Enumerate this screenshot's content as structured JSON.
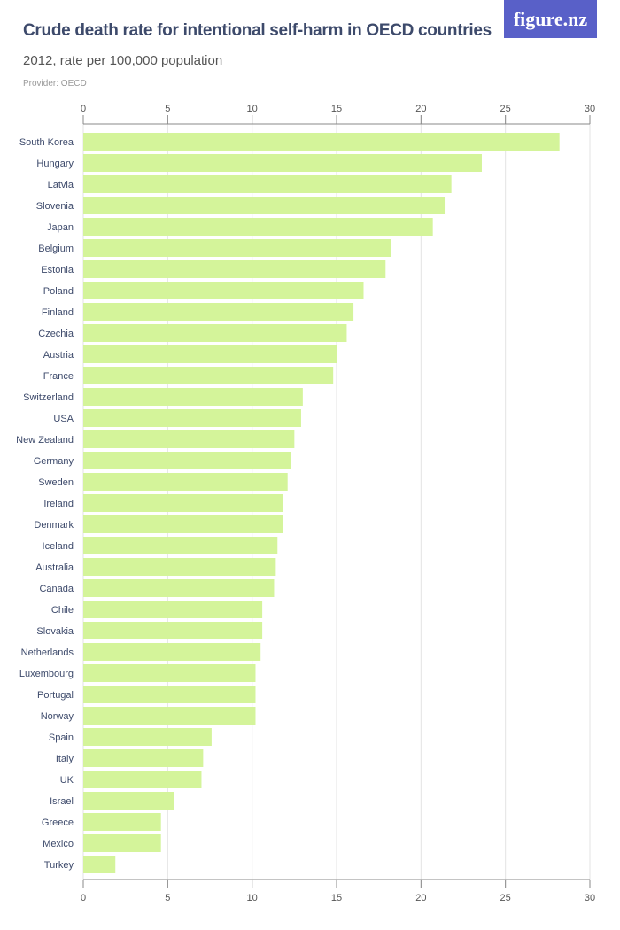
{
  "header": {
    "title": "Crude death rate for intentional self-harm in OECD countries",
    "subtitle": "2012, rate per 100,000 population",
    "provider": "Provider: OECD",
    "logo": "figure.nz"
  },
  "colors": {
    "bar": "#d4f49a",
    "title": "#3d4a6b",
    "logo_bg": "#5960c8"
  },
  "chart_data": {
    "type": "bar",
    "orientation": "horizontal",
    "xlim": [
      0,
      30
    ],
    "ticks": [
      0,
      5,
      10,
      15,
      20,
      25,
      30
    ],
    "grid": true,
    "categories": [
      "South Korea",
      "Hungary",
      "Latvia",
      "Slovenia",
      "Japan",
      "Belgium",
      "Estonia",
      "Poland",
      "Finland",
      "Czechia",
      "Austria",
      "France",
      "Switzerland",
      "USA",
      "New Zealand",
      "Germany",
      "Sweden",
      "Ireland",
      "Denmark",
      "Iceland",
      "Australia",
      "Canada",
      "Chile",
      "Slovakia",
      "Netherlands",
      "Luxembourg",
      "Portugal",
      "Norway",
      "Spain",
      "Italy",
      "UK",
      "Israel",
      "Greece",
      "Mexico",
      "Turkey"
    ],
    "values": [
      28.2,
      23.6,
      21.8,
      21.4,
      20.7,
      18.2,
      17.9,
      16.6,
      16.0,
      15.6,
      15.0,
      14.8,
      13.0,
      12.9,
      12.5,
      12.3,
      12.1,
      11.8,
      11.8,
      11.5,
      11.4,
      11.3,
      10.6,
      10.6,
      10.5,
      10.2,
      10.2,
      10.2,
      7.6,
      7.1,
      7.0,
      5.4,
      4.6,
      4.6,
      1.9
    ]
  }
}
